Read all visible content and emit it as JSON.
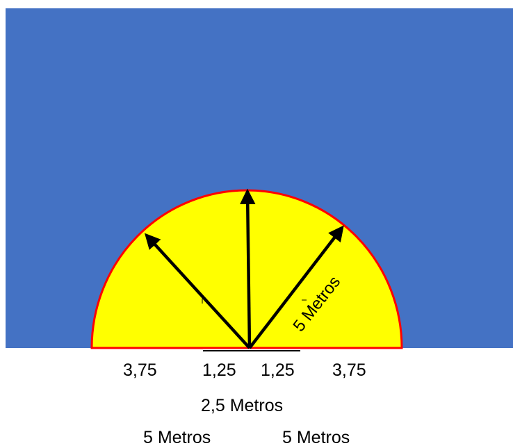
{
  "colors": {
    "background_rect": "#4472C4",
    "semicircle_fill": "#FFFF00",
    "semicircle_stroke": "#FF0000",
    "arrow": "#000000"
  },
  "diagram": {
    "radius_label": "5 Metros",
    "tick_labels": {
      "left_outer": "3,75",
      "left_inner": "1,25",
      "right_inner": "1,25",
      "right_outer": "3,75"
    },
    "center_span_label": "2,5 Metros",
    "left_span_label": "5 Metros",
    "right_span_label": "5 Metros"
  }
}
